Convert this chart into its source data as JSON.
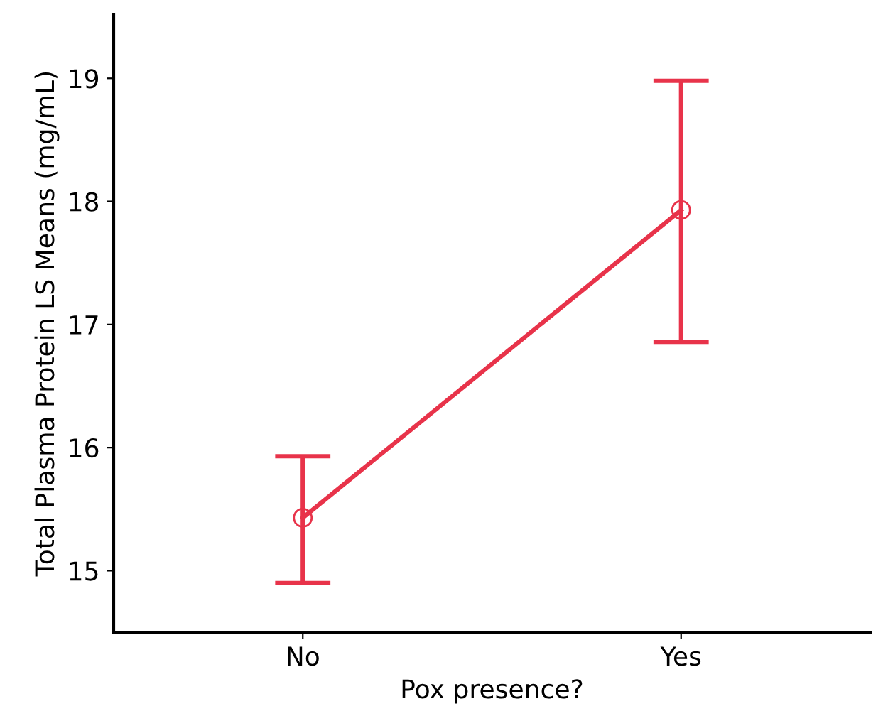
{
  "chart_data": {
    "type": "line",
    "xlabel": "Pox presence?",
    "ylabel": "Total Plasma Protein LS Means (mg/mL)",
    "categories": [
      "No",
      "Yes"
    ],
    "series": [
      {
        "color": "#e8334a",
        "values": [
          15.43,
          17.93
        ],
        "errors": [
          [
            14.9,
            15.93
          ],
          [
            16.86,
            18.98
          ]
        ]
      }
    ],
    "ylim": [
      14.5,
      19.52
    ],
    "yticks": [
      15,
      16,
      17,
      18,
      19
    ],
    "marker": "circle",
    "line_style": "solid",
    "grid": false
  }
}
